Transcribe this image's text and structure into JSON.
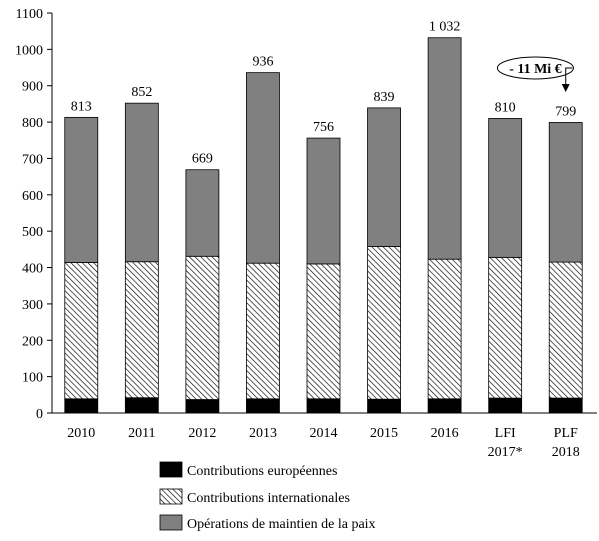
{
  "chart_data": {
    "type": "bar",
    "stacked": true,
    "categories": [
      [
        "2010"
      ],
      [
        "2011"
      ],
      [
        "2012"
      ],
      [
        "2013"
      ],
      [
        "2014"
      ],
      [
        "2015"
      ],
      [
        "2016"
      ],
      [
        "LFI",
        "2017*"
      ],
      [
        "PLF",
        "2018"
      ]
    ],
    "series": [
      {
        "name": "Contributions européennes",
        "values": [
          39,
          42,
          37,
          39,
          39,
          38,
          39,
          41,
          41
        ],
        "fill": "solid",
        "color": "#000000"
      },
      {
        "name": "Contributions internationales",
        "values": [
          375,
          374,
          394,
          373,
          371,
          420,
          384,
          387,
          374
        ],
        "fill": "hatch",
        "color": "#000000"
      },
      {
        "name": "Opérations de maintien de la paix",
        "values": [
          399,
          436,
          238,
          524,
          346,
          381,
          609,
          382,
          384
        ],
        "fill": "solid",
        "color": "#808080"
      }
    ],
    "totals": [
      "813",
      "852",
      "669",
      "936",
      "756",
      "839",
      "1 032",
      "810",
      "799"
    ],
    "ylim": [
      0,
      1100
    ],
    "yticks": [
      "0",
      "100",
      "200",
      "300",
      "400",
      "500",
      "600",
      "700",
      "800",
      "900",
      "1000",
      "1100"
    ],
    "annotation": {
      "text": "- 11 Mi €",
      "from_index": 7,
      "to_index": 8
    },
    "legend_position": "bottom"
  }
}
